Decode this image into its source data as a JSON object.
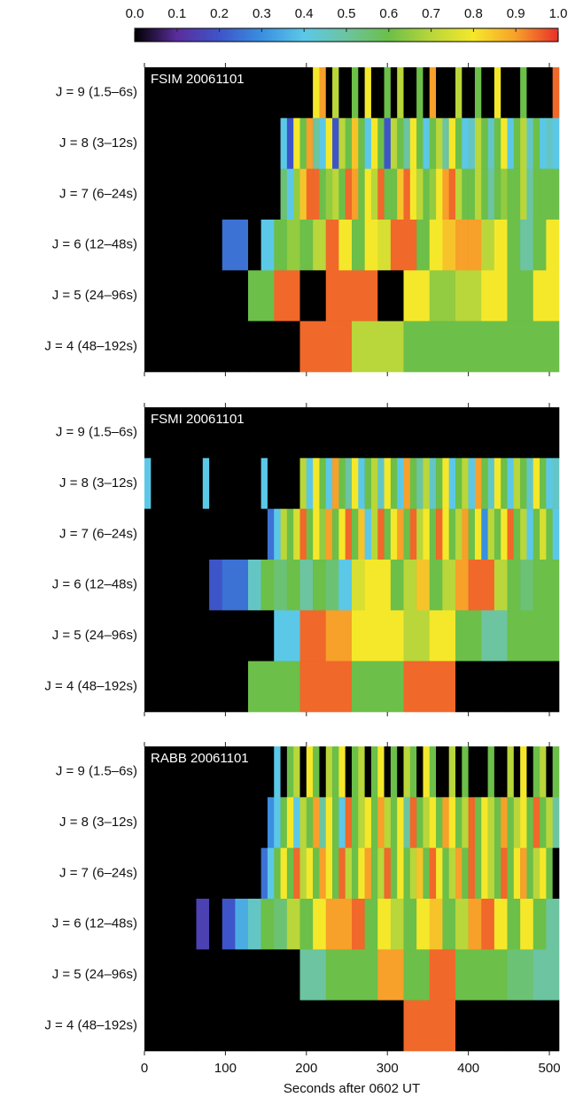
{
  "colorbar": {
    "lim": [
      0,
      1
    ],
    "ticks": [
      {
        "value": 0,
        "label": "0.0"
      },
      0.1,
      0.2,
      0.3,
      0.4,
      0.5,
      0.6,
      0.7,
      0.8,
      0.9,
      {
        "value": 1,
        "label": "1.0"
      }
    ],
    "colors": [
      "#000000",
      "#5a2d9c",
      "#3d55c8",
      "#3a8fe0",
      "#5cc8e8",
      "#6cc4a0",
      "#6cbf48",
      "#b9d63a",
      "#f5e82a",
      "#f7a02a",
      "#e8302a"
    ]
  },
  "chart_data": [
    {
      "type": "heatmap",
      "title": "FSIM 20061101",
      "xlim": [
        0,
        512
      ],
      "xticks": [
        0,
        100,
        200,
        300,
        400,
        500
      ],
      "categories": [
        "J = 9 (1.5–6s)",
        "J = 8 (3–12s)",
        "J = 7 (6–24s)",
        "J = 6 (12–48s)",
        "J = 5 (24–96s)",
        "J = 4 (48–192s)"
      ],
      "values": [
        [
          0,
          0,
          0,
          0,
          0,
          0,
          0,
          0,
          0,
          0,
          0,
          0,
          0,
          0,
          0,
          0,
          0,
          0,
          0,
          0,
          0,
          0,
          0,
          0,
          0,
          0,
          0.8,
          0.9,
          0,
          0.7,
          0,
          0,
          0.6,
          0,
          0.8,
          0,
          0,
          0.6,
          0,
          0.7,
          0,
          0,
          0.6,
          0,
          0.9,
          0,
          0,
          0,
          0.7,
          0,
          0,
          0.6,
          0,
          0,
          0.8,
          0,
          0,
          0,
          0.6,
          0,
          0,
          0,
          0,
          0.95
        ],
        [
          0,
          0,
          0,
          0,
          0,
          0,
          0,
          0,
          0,
          0,
          0,
          0,
          0,
          0,
          0,
          0,
          0,
          0,
          0,
          0,
          0,
          0.4,
          0.2,
          0.8,
          0.6,
          0.9,
          0.5,
          0.4,
          0.8,
          0.2,
          0.7,
          0.6,
          0.85,
          0.6,
          0.4,
          0.8,
          0.6,
          0.2,
          0.7,
          0.6,
          0.5,
          0.8,
          0.6,
          0.4,
          0.6,
          0.7,
          0.5,
          0.8,
          0.6,
          0.4,
          0.45,
          0.7,
          0.6,
          0.45,
          0.6,
          0.8,
          0.4,
          0.6,
          0.7,
          0.45,
          0.6,
          0.4,
          0.45,
          0.4
        ],
        [
          0,
          0,
          0,
          0,
          0,
          0,
          0,
          0,
          0,
          0,
          0,
          0,
          0,
          0,
          0,
          0,
          0,
          0,
          0,
          0,
          0,
          0.55,
          0.4,
          0.65,
          0.85,
          0.95,
          0.95,
          0.6,
          0.65,
          0.7,
          0.6,
          0.95,
          0.9,
          0.6,
          0.8,
          0.7,
          0.95,
          0.6,
          0.6,
          0.85,
          0.95,
          0.8,
          0.7,
          0.6,
          0.65,
          0.8,
          0.9,
          0.95,
          0.7,
          0.6,
          0.6,
          0.7,
          0.6,
          0.5,
          0.6,
          0.65,
          0.6,
          0.6,
          0.7,
          0.5,
          0.6,
          0.6,
          0.6,
          0.6
        ],
        [
          0,
          0,
          0,
          0,
          0,
          0,
          0.25,
          0.25,
          0,
          0.4,
          0.6,
          0.65,
          0.6,
          0.7,
          0.95,
          0.8,
          0.6,
          0.8,
          0.75,
          0.95,
          0.95,
          0.6,
          0.8,
          0.85,
          0.9,
          0.9,
          0.7,
          0.8,
          0.6,
          0.5,
          0.6,
          0.8
        ],
        [
          0,
          0,
          0,
          0,
          0.6,
          0.95,
          0,
          0.95,
          0.95,
          0,
          0.8,
          0.65,
          0.7,
          0.8,
          0.6,
          0.8
        ],
        [
          0,
          0,
          0,
          0.95,
          0.7,
          0.6,
          0.6,
          0.6
        ]
      ]
    },
    {
      "type": "heatmap",
      "title": "FSMI 20061101",
      "xlim": [
        0,
        512
      ],
      "xticks": [
        0,
        100,
        200,
        300,
        400,
        500
      ],
      "categories": [
        "J = 9 (1.5–6s)",
        "J = 8 (3–12s)",
        "J = 7 (6–24s)",
        "J = 6 (12–48s)",
        "J = 5 (24–96s)",
        "J = 4 (48–192s)"
      ],
      "values": [
        [
          0,
          0,
          0,
          0,
          0,
          0,
          0,
          0,
          0,
          0,
          0,
          0,
          0,
          0,
          0,
          0,
          0,
          0,
          0,
          0,
          0,
          0,
          0,
          0,
          0,
          0,
          0,
          0,
          0,
          0,
          0,
          0,
          0,
          0,
          0,
          0,
          0,
          0,
          0,
          0,
          0,
          0,
          0,
          0,
          0,
          0,
          0,
          0,
          0,
          0,
          0,
          0,
          0,
          0,
          0,
          0,
          0,
          0,
          0,
          0,
          0,
          0,
          0,
          0
        ],
        [
          0.4,
          0,
          0,
          0,
          0,
          0,
          0,
          0,
          0,
          0.4,
          0,
          0,
          0,
          0,
          0,
          0,
          0,
          0,
          0.4,
          0,
          0,
          0,
          0,
          0,
          0.7,
          0.4,
          0.8,
          0.6,
          0.4,
          0.9,
          0.6,
          0.5,
          0.8,
          0.4,
          0.6,
          0.7,
          0.45,
          0.8,
          0.6,
          0.4,
          0.9,
          0.6,
          0.5,
          0.7,
          0.45,
          0.6,
          0.8,
          0.4,
          0.6,
          0.7,
          0.4,
          0.9,
          0.6,
          0.45,
          0.8,
          0.6,
          0.4,
          0.7,
          0.6,
          0.45,
          0.8,
          0.6,
          0.4,
          0.45
        ],
        [
          0,
          0,
          0,
          0,
          0,
          0,
          0,
          0,
          0,
          0,
          0,
          0,
          0,
          0,
          0,
          0,
          0,
          0,
          0,
          0.25,
          0.4,
          0.7,
          0.6,
          0.75,
          0.95,
          0.6,
          0.8,
          0.65,
          0.9,
          0.6,
          0.8,
          0.95,
          0.6,
          0.85,
          0.4,
          0.7,
          0.95,
          0.6,
          0.8,
          0.9,
          0.6,
          0.95,
          0.7,
          0.8,
          0.6,
          0.95,
          0.8,
          0.6,
          0.7,
          0.9,
          0.6,
          0.8,
          0.3,
          0.7,
          0.6,
          0.8,
          0.95,
          0.6,
          0.7,
          0.4,
          0.6,
          0.75,
          0.6,
          0.4
        ],
        [
          0,
          0,
          0,
          0,
          0,
          0.2,
          0.25,
          0.25,
          0.45,
          0.6,
          0.55,
          0.6,
          0.5,
          0.6,
          0.55,
          0.4,
          0.75,
          0.8,
          0.8,
          0.6,
          0.7,
          0.85,
          0.6,
          0.7,
          0.9,
          0.95,
          0.95,
          0.7,
          0.6,
          0.55,
          0.6,
          0.6
        ],
        [
          0,
          0,
          0,
          0,
          0,
          0.4,
          0.95,
          0.9,
          0.8,
          0.8,
          0.7,
          0.8,
          0.6,
          0.5,
          0.6,
          0.6
        ],
        [
          0,
          0,
          0.6,
          0.95,
          0.6,
          0.95,
          0,
          0
        ]
      ]
    },
    {
      "type": "heatmap",
      "title": "RABB 20061101",
      "xlim": [
        0,
        512
      ],
      "xticks": [
        0,
        100,
        200,
        300,
        400,
        500
      ],
      "xlabel": "Seconds after 0602 UT",
      "categories": [
        "J = 9 (1.5–6s)",
        "J = 8 (3–12s)",
        "J = 7 (6–24s)",
        "J = 6 (12–48s)",
        "J = 5 (24–96s)",
        "J = 4 (48–192s)"
      ],
      "values": [
        [
          0,
          0,
          0,
          0,
          0,
          0,
          0,
          0,
          0,
          0,
          0,
          0,
          0,
          0,
          0,
          0,
          0,
          0,
          0,
          0,
          0.4,
          0,
          0.6,
          0.7,
          0,
          0.8,
          0.6,
          0,
          0.7,
          0.6,
          0.8,
          0,
          0.6,
          0.7,
          0,
          0.6,
          0.8,
          0,
          0.6,
          0,
          0.7,
          0.6,
          0,
          0.8,
          0.6,
          0,
          0,
          0.7,
          0,
          0.6,
          0,
          0,
          0,
          0.6,
          0,
          0,
          0.7,
          0,
          0.8,
          0,
          0.6,
          0.7,
          0,
          0.6
        ],
        [
          0,
          0,
          0,
          0,
          0,
          0,
          0,
          0,
          0,
          0,
          0,
          0,
          0,
          0,
          0,
          0,
          0,
          0,
          0,
          0.3,
          0.4,
          0.6,
          0.8,
          0.4,
          0.7,
          0.6,
          0.9,
          0.5,
          0.8,
          0.6,
          0.4,
          0.95,
          0.6,
          0.7,
          0.8,
          0.6,
          0.9,
          0.7,
          0.6,
          0.8,
          0.5,
          0.95,
          0.6,
          0.7,
          0.8,
          0.6,
          0.9,
          0.8,
          0.6,
          0.7,
          0.95,
          0.6,
          0.8,
          0.7,
          0.6,
          0.9,
          0.6,
          0.7,
          0.8,
          0.6,
          0.95,
          0.6,
          0.7,
          0.5
        ],
        [
          0,
          0,
          0,
          0,
          0,
          0,
          0,
          0,
          0,
          0,
          0,
          0,
          0,
          0,
          0,
          0,
          0,
          0,
          0.25,
          0.4,
          0.6,
          0.8,
          0.6,
          0.95,
          0.7,
          0.8,
          0.6,
          0.9,
          0.8,
          0.6,
          0.95,
          0.7,
          0.6,
          0.8,
          0.9,
          0.6,
          0.7,
          0.95,
          0.6,
          0.8,
          0.6,
          0.7,
          0.85,
          0.6,
          0.95,
          0.8,
          0.6,
          0.7,
          0.9,
          0.6,
          0.95,
          0.6,
          0.8,
          0.7,
          0.6,
          0.95,
          0.6,
          0.8,
          0.9,
          0.6,
          0.7,
          0.8,
          0.6,
          0
        ],
        [
          0,
          0,
          0,
          0,
          0.15,
          0,
          0.2,
          0.35,
          0.45,
          0.6,
          0.55,
          0.7,
          0.6,
          0.8,
          0.9,
          0.9,
          0.95,
          0.6,
          0.8,
          0.7,
          0.6,
          0.8,
          0.85,
          0.6,
          0.7,
          0.9,
          0.95,
          0.8,
          0.6,
          0.8,
          0.6,
          0.5
        ],
        [
          0,
          0,
          0,
          0,
          0,
          0,
          0.5,
          0.6,
          0.6,
          0.9,
          0.6,
          0.95,
          0.6,
          0.6,
          0.55,
          0.5
        ],
        [
          0,
          0,
          0,
          0,
          0,
          0.95,
          0,
          0
        ]
      ]
    }
  ]
}
